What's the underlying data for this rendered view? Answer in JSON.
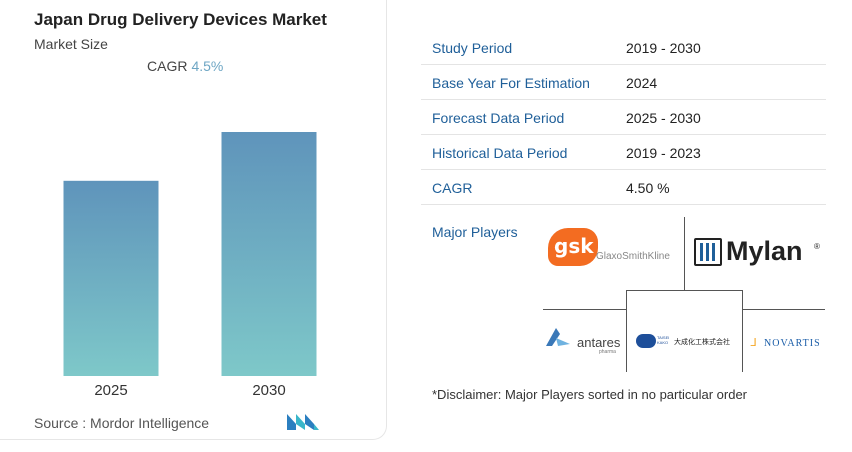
{
  "chart": {
    "title": "Japan Drug Delivery Devices Market",
    "subtitle": "Market Size",
    "cagr_label": "CAGR",
    "cagr_value": "4.5%",
    "source": "Source : Mordor Intelligence"
  },
  "chart_data": {
    "type": "bar",
    "categories": [
      "2025",
      "2030"
    ],
    "values": [
      1.0,
      1.25
    ],
    "title": "Japan Drug Delivery Devices Market",
    "subtitle": "Market Size",
    "xlabel": "",
    "ylabel": "",
    "grid": false,
    "bar_gradient": [
      "#5f94bb",
      "#7ec8c9"
    ]
  },
  "study": {
    "rows": [
      {
        "key": "Study Period",
        "value": "2019 - 2030"
      },
      {
        "key": "Base Year For Estimation",
        "value": "2024"
      },
      {
        "key": "Forecast Data Period",
        "value": "2025 - 2030"
      },
      {
        "key": "Historical Data Period",
        "value": "2019 - 2023"
      },
      {
        "key": "CAGR",
        "value": "4.50 %"
      }
    ],
    "major_players_label": "Major Players",
    "players": {
      "gsk_mark": "gsk",
      "gsk_name": "GlaxoSmithKline",
      "mylan": "Mylan",
      "mylan_mark": "®",
      "antares": "antares",
      "antares_sub": "pharma",
      "taisei_mark": "TAISEI KAKO",
      "taisei": "大成化工株式会社",
      "novartis": "NOVARTIS"
    },
    "disclaimer": "*Disclaimer: Major Players sorted in no particular order"
  },
  "colors": {
    "accent": "#1f5f99",
    "cagr": "#6ea6c4",
    "bar_top": "#5f94bb",
    "bar_bottom": "#7ec8c9",
    "gsk": "#f36c21",
    "novartis": "#1a5da8"
  }
}
